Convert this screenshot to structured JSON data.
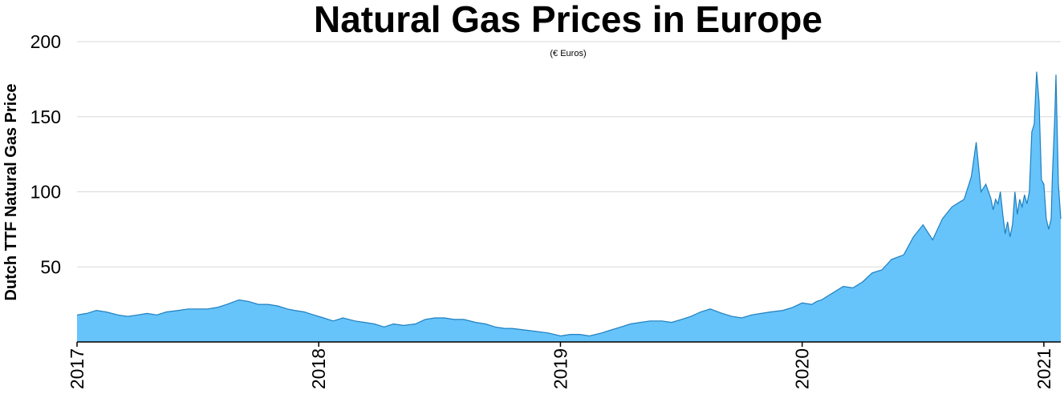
{
  "chart_data": {
    "type": "area",
    "title": "Natural Gas Prices in Europe",
    "subtitle": "(€ Euros)",
    "ylabel": "Dutch TTF Natural Gas Price",
    "xlabel": "",
    "ylim": [
      0,
      200
    ],
    "xlim": [
      2017.0,
      2021.07
    ],
    "yticks": [
      "50",
      "100",
      "150",
      "200"
    ],
    "xticks": [
      "2017",
      "2018",
      "2019",
      "2020",
      "2021"
    ],
    "grid": "horizontal",
    "colors": {
      "fill": "#66c4fb",
      "line": "#1f7fbf"
    },
    "series": [
      {
        "x": [
          2017.0,
          2017.04,
          2017.08,
          2017.12,
          2017.17,
          2017.21,
          2017.25,
          2017.29,
          2017.33,
          2017.37,
          2017.42,
          2017.46,
          2017.5,
          2017.54,
          2017.58,
          2017.62,
          2017.67,
          2017.71,
          2017.75,
          2017.79,
          2017.83,
          2017.87,
          2017.9,
          2017.94,
          2017.98,
          2018.02,
          2018.06,
          2018.1,
          2018.15,
          2018.19,
          2018.23,
          2018.27,
          2018.31,
          2018.35,
          2018.4,
          2018.44,
          2018.48,
          2018.52,
          2018.56,
          2018.6,
          2018.65,
          2018.69,
          2018.73,
          2018.77,
          2018.8,
          2018.85,
          2018.9,
          2018.95,
          2019.0,
          2019.04,
          2019.08,
          2019.12,
          2019.17,
          2019.21,
          2019.25,
          2019.29,
          2019.33,
          2019.37,
          2019.42,
          2019.46,
          2019.5,
          2019.54,
          2019.58,
          2019.62,
          2019.67,
          2019.71,
          2019.75,
          2019.79,
          2019.83,
          2019.87,
          2019.92,
          2019.96,
          2020.0,
          2020.04,
          2020.06,
          2020.08,
          2020.1,
          2020.13,
          2020.17,
          2020.21,
          2020.25,
          2020.29,
          2020.33,
          2020.37,
          2020.42,
          2020.46,
          2020.5,
          2020.54,
          2020.58,
          2020.62,
          2020.67,
          2020.7,
          2020.72,
          2020.74,
          2020.76,
          2020.78,
          2020.79,
          2020.8,
          2020.81,
          2020.82,
          2020.83,
          2020.84,
          2020.85,
          2020.86,
          2020.87,
          2020.88,
          2020.89,
          2020.9,
          2020.91,
          2020.92,
          2020.93,
          2020.94,
          2020.95,
          2020.96,
          2020.97,
          2020.98,
          2020.99,
          2021.0,
          2021.01,
          2021.02,
          2021.03,
          2021.035,
          2021.04,
          2021.045,
          2021.05,
          2021.06,
          2021.07
        ],
        "y": [
          18,
          19,
          21,
          20,
          18,
          17,
          18,
          19,
          18,
          20,
          21,
          22,
          22,
          22,
          23,
          25,
          28,
          27,
          25,
          25,
          24,
          22,
          21,
          20,
          18,
          16,
          14,
          16,
          14,
          13,
          12,
          10,
          12,
          11,
          12,
          15,
          16,
          16,
          15,
          15,
          13,
          12,
          10,
          9,
          9,
          8,
          7,
          6,
          4,
          5,
          5,
          4,
          6,
          8,
          10,
          12,
          13,
          14,
          14,
          13,
          15,
          17,
          20,
          22,
          19,
          17,
          16,
          18,
          19,
          20,
          21,
          23,
          26,
          25,
          27,
          28,
          30,
          33,
          37,
          36,
          40,
          46,
          48,
          55,
          58,
          70,
          78,
          68,
          82,
          90,
          95,
          110,
          133,
          100,
          105,
          96,
          88,
          95,
          92,
          100,
          85,
          72,
          80,
          70,
          78,
          100,
          85,
          95,
          90,
          98,
          92,
          100,
          140,
          145,
          180,
          160,
          108,
          105,
          82,
          75,
          82,
          110,
          130,
          150,
          178,
          105,
          82
        ]
      }
    ]
  }
}
